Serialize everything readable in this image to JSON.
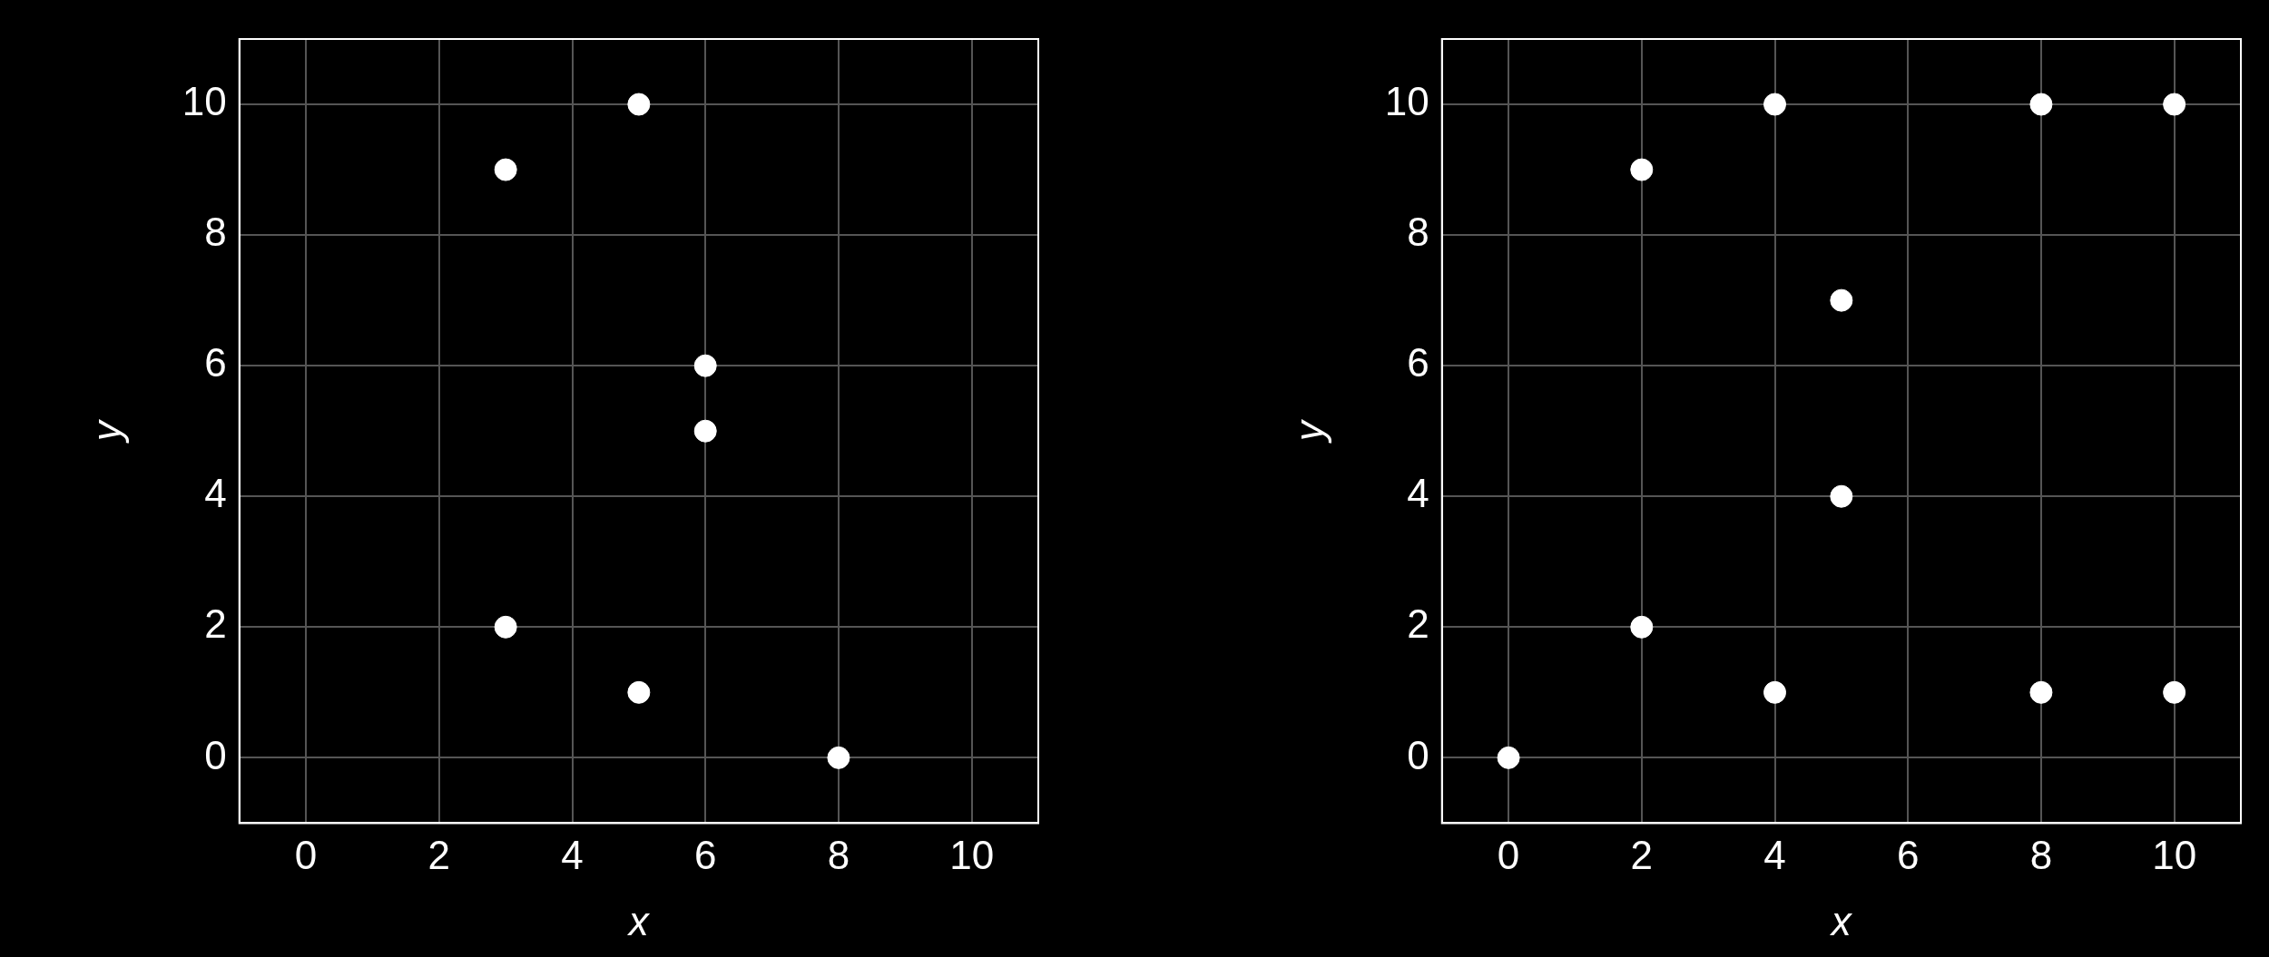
{
  "chart_data": [
    {
      "type": "scatter",
      "xlabel": "x",
      "ylabel": "y",
      "xlim": [
        -1,
        11
      ],
      "ylim": [
        -1,
        11
      ],
      "xticks": [
        0,
        2,
        4,
        6,
        8,
        10
      ],
      "yticks": [
        0,
        2,
        4,
        6,
        8,
        10
      ],
      "grid": true,
      "marker": "circle",
      "legend": false,
      "series": [
        {
          "color": "#ffffff",
          "x": [
            3,
            5,
            6,
            6,
            3,
            5,
            8
          ],
          "values": [
            9,
            10,
            6,
            5,
            2,
            1,
            0
          ]
        }
      ]
    },
    {
      "type": "scatter",
      "xlabel": "x",
      "ylabel": "y",
      "xlim": [
        -1,
        11
      ],
      "ylim": [
        -1,
        11
      ],
      "xticks": [
        0,
        2,
        4,
        6,
        8,
        10
      ],
      "yticks": [
        0,
        2,
        4,
        6,
        8,
        10
      ],
      "grid": true,
      "marker": "circle",
      "legend": false,
      "series": [
        {
          "color": "#ffffff",
          "x": [
            0,
            2,
            2,
            4,
            4,
            5,
            5,
            8,
            8,
            10,
            10
          ],
          "values": [
            0,
            2,
            9,
            10,
            1,
            7,
            4,
            10,
            1,
            10,
            1
          ]
        }
      ]
    }
  ]
}
